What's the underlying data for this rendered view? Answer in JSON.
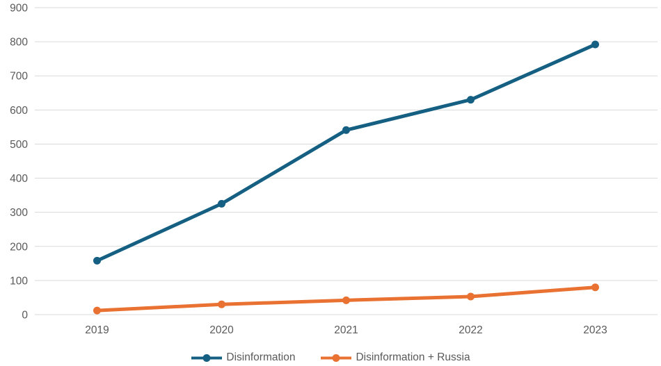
{
  "chart_data": {
    "type": "line",
    "title": "",
    "xlabel": "",
    "ylabel": "",
    "categories": [
      "2019",
      "2020",
      "2021",
      "2022",
      "2023"
    ],
    "series": [
      {
        "name": "Disinformation",
        "color": "#156082",
        "values": [
          158,
          325,
          541,
          630,
          792
        ]
      },
      {
        "name": "Disinformation + Russia",
        "color": "#E97132",
        "values": [
          12,
          30,
          42,
          53,
          80
        ]
      }
    ],
    "ylim": [
      0,
      900
    ],
    "ytick_step": 100,
    "grid": "horizontal",
    "legend_position": "bottom"
  },
  "style": {
    "background": "#FFFFFF",
    "gridline_color": "#D9D9D9",
    "axis_text_color": "#595959",
    "line_width": 5,
    "marker_radius": 5.5
  }
}
